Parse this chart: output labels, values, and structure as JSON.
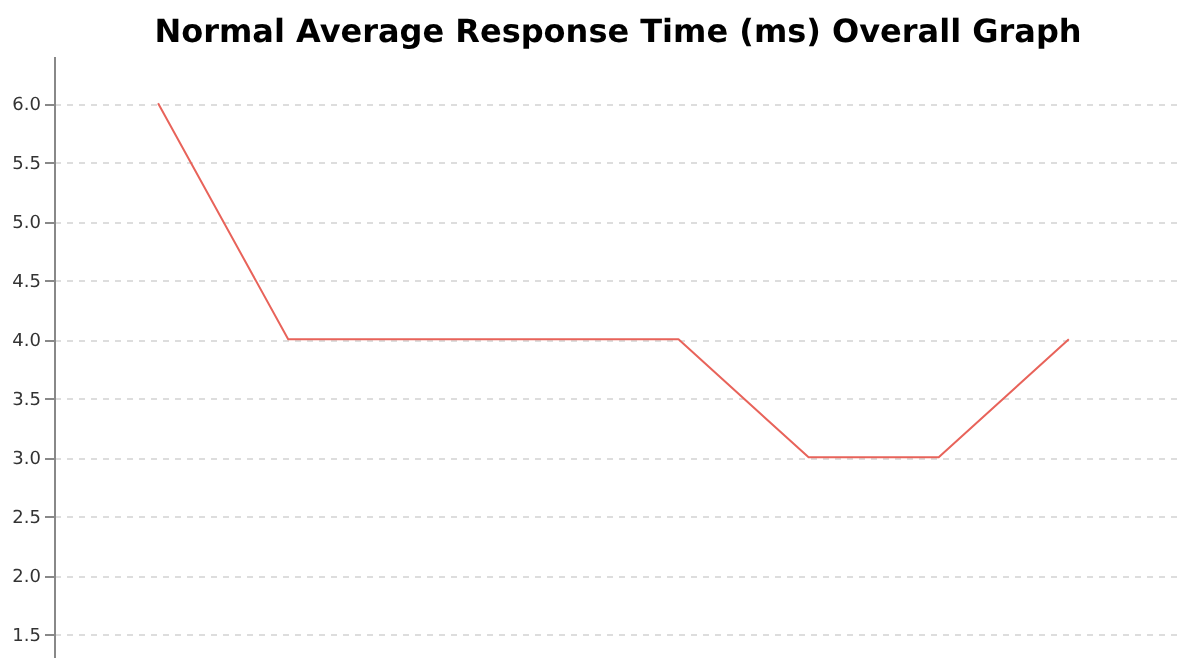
{
  "chart_data": {
    "type": "line",
    "title": "Normal Average Response Time (ms) Overall Graph",
    "categories": [
      null,
      null,
      null,
      null,
      null,
      null,
      null,
      null
    ],
    "series": [
      {
        "color": "#e8635a",
        "values": [
          6.0,
          4.0,
          4.0,
          4.0,
          4.0,
          3.0,
          3.0,
          4.0
        ]
      }
    ],
    "ylim": [
      1.3,
      6.4
    ],
    "yticks": [
      {
        "value": 1.5,
        "label": "1.5"
      },
      {
        "value": 2,
        "label": "2.0"
      },
      {
        "value": 2.5,
        "label": "2.5"
      },
      {
        "value": 3,
        "label": "3.0"
      },
      {
        "value": 3.5,
        "label": "3.5"
      },
      {
        "value": 4,
        "label": "4.0"
      },
      {
        "value": 4.5,
        "label": "4.5"
      },
      {
        "value": 5,
        "label": "5.0"
      },
      {
        "value": 5.5,
        "label": "5.5"
      },
      {
        "value": 6,
        "label": "6.0"
      }
    ],
    "grid": "y",
    "marker": "none",
    "line_style": "solid",
    "tick_labels": "y"
  }
}
